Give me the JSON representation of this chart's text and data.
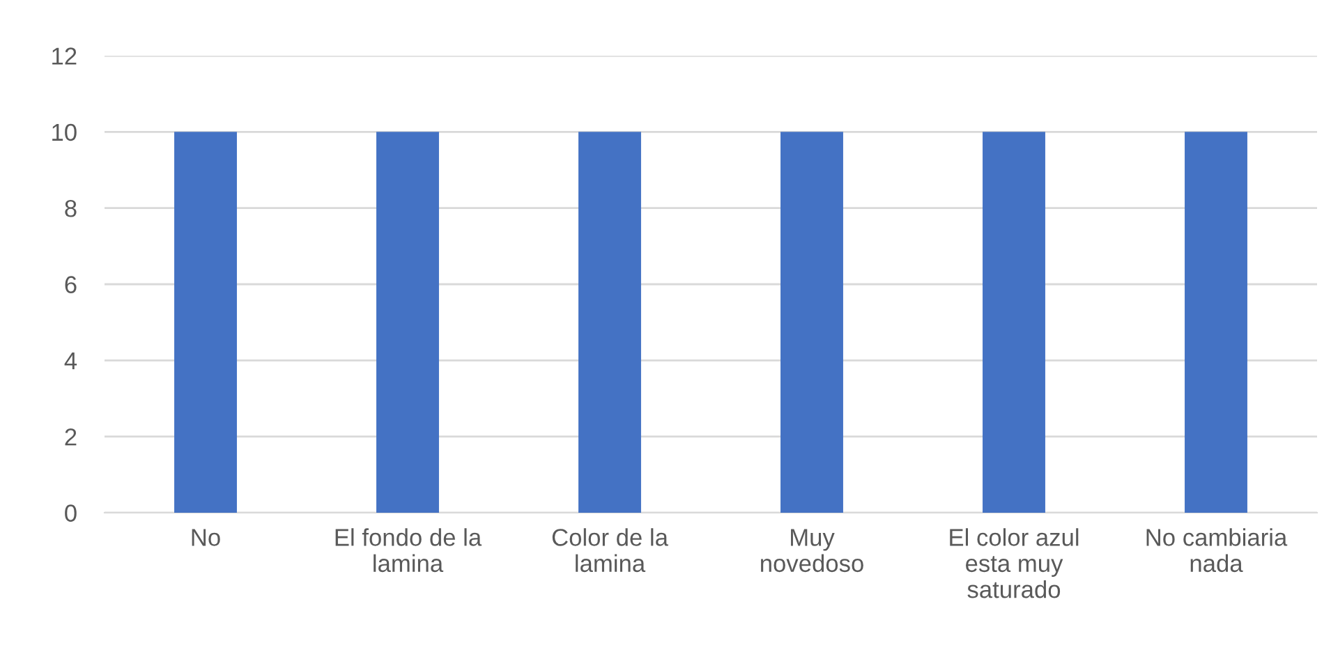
{
  "chart_data": {
    "type": "bar",
    "categories": [
      "No",
      "El fondo de la\nlamina",
      "Color de la\nlamina",
      "Muy\nnovedoso",
      "El color azul\nesta muy\nsaturado",
      "No cambiaria\nnada"
    ],
    "values": [
      10,
      10,
      10,
      10,
      10,
      10
    ],
    "color": "#4472c4",
    "ylim": [
      0,
      12
    ],
    "yticks": [
      0,
      2,
      4,
      6,
      8,
      10,
      12
    ],
    "grid": "y",
    "legend": false
  }
}
